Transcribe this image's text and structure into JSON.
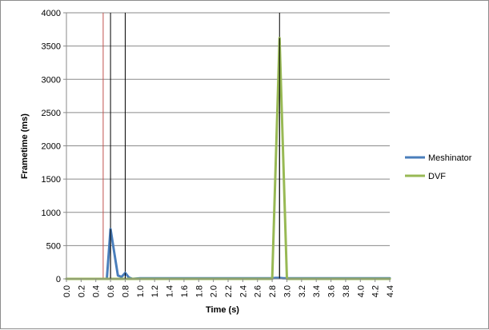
{
  "chart_data": {
    "type": "line",
    "title": "",
    "xlabel": "Time (s)",
    "ylabel": "Frametime (ms)",
    "xlim": [
      0,
      4.4
    ],
    "ylim": [
      0,
      4000
    ],
    "x_ticks": [
      "0.0",
      "0.2",
      "0.4",
      "0.6",
      "0.8",
      "1.0",
      "1.2",
      "1.4",
      "1.6",
      "1.8",
      "2.0",
      "2.2",
      "2.4",
      "2.6",
      "2.8",
      "3.0",
      "3.2",
      "3.4",
      "3.6",
      "3.8",
      "4.0",
      "4.2",
      "4.4"
    ],
    "y_ticks": [
      0,
      500,
      1000,
      1500,
      2000,
      2500,
      3000,
      3500,
      4000
    ],
    "grid": "horizontal",
    "legend_position": "right",
    "series": [
      {
        "name": "Meshinator",
        "color": "#4a7ebb",
        "points": [
          [
            0.0,
            0
          ],
          [
            0.5,
            0
          ],
          [
            0.55,
            0
          ],
          [
            0.6,
            750
          ],
          [
            0.65,
            400
          ],
          [
            0.7,
            50
          ],
          [
            0.75,
            30
          ],
          [
            0.8,
            90
          ],
          [
            0.85,
            20
          ],
          [
            0.9,
            0
          ],
          [
            1.0,
            8
          ],
          [
            1.5,
            8
          ],
          [
            2.0,
            8
          ],
          [
            2.5,
            8
          ],
          [
            2.8,
            8
          ],
          [
            2.85,
            15
          ],
          [
            2.9,
            15
          ],
          [
            2.95,
            8
          ],
          [
            3.0,
            8
          ],
          [
            3.5,
            8
          ],
          [
            4.0,
            8
          ],
          [
            4.4,
            8
          ]
        ]
      },
      {
        "name": "DVF",
        "color": "#98b954",
        "points": [
          [
            0.0,
            0
          ],
          [
            0.5,
            0
          ],
          [
            1.0,
            0
          ],
          [
            1.5,
            0
          ],
          [
            2.0,
            0
          ],
          [
            2.5,
            0
          ],
          [
            2.8,
            0
          ],
          [
            2.9,
            3620
          ],
          [
            3.0,
            0
          ],
          [
            3.5,
            0
          ],
          [
            4.0,
            0
          ],
          [
            4.4,
            0
          ]
        ]
      }
    ],
    "markers": [
      {
        "x": 0.5,
        "color": "#c0504d"
      },
      {
        "x": 0.6,
        "color": "#000000"
      },
      {
        "x": 0.8,
        "color": "#000000"
      },
      {
        "x": 2.9,
        "color": "#000000"
      }
    ]
  }
}
